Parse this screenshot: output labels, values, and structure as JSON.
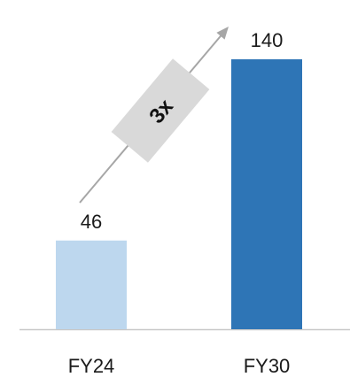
{
  "chart_data": {
    "type": "bar",
    "categories": [
      "FY24",
      "FY30"
    ],
    "values": [
      46,
      140
    ],
    "value_labels": [
      "46",
      "140"
    ],
    "ylim": [
      0,
      140
    ],
    "bar_colors": [
      "#bdd7ee",
      "#2e75b6"
    ],
    "axis_color": "#c8c8c8",
    "grid": false,
    "annotation": {
      "type": "growth-arrow",
      "label": "3x",
      "from_category": "FY24",
      "to_category": "FY30",
      "box_color": "#d9d9d9",
      "arrow_color": "#a6a6a6"
    }
  }
}
